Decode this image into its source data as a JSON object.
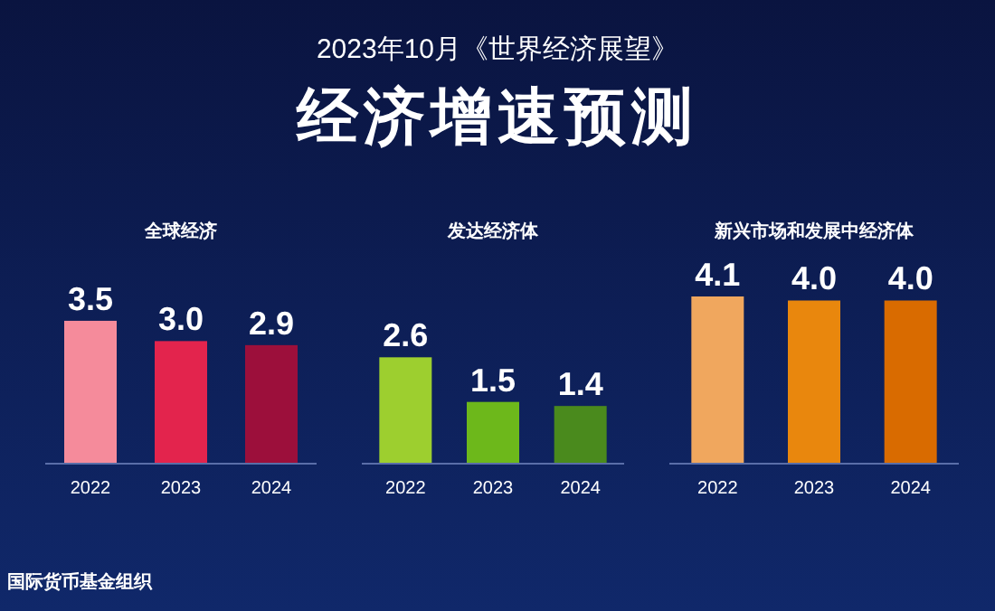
{
  "chart_data": [
    {
      "type": "other",
      "title": "经济增速预测",
      "subtitle": "2023年10月《世界经济展望》",
      "annotations": [
        "国际货币基金组织"
      ]
    },
    {
      "type": "bar",
      "title": "全球经济",
      "categories": [
        "2022",
        "2023",
        "2024"
      ],
      "values": [
        3.5,
        3.0,
        2.9
      ],
      "value_labels": [
        "3.5",
        "3.0",
        "2.9"
      ],
      "colors": [
        "#f58b9b",
        "#e3244d",
        "#9c0f3b"
      ]
    },
    {
      "type": "bar",
      "title": "发达经济体",
      "categories": [
        "2022",
        "2023",
        "2024"
      ],
      "values": [
        2.6,
        1.5,
        1.4
      ],
      "value_labels": [
        "2.6",
        "1.5",
        "1.4"
      ],
      "colors": [
        "#9dcf2f",
        "#6db81b",
        "#4a8a1d"
      ]
    },
    {
      "type": "bar",
      "title": "新兴市场和发展中经济体",
      "categories": [
        "2022",
        "2023",
        "2024"
      ],
      "values": [
        4.1,
        4.0,
        4.0
      ],
      "value_labels": [
        "4.1",
        "4.0",
        "4.0"
      ],
      "colors": [
        "#f0a75e",
        "#e9870d",
        "#d96b00"
      ]
    }
  ]
}
